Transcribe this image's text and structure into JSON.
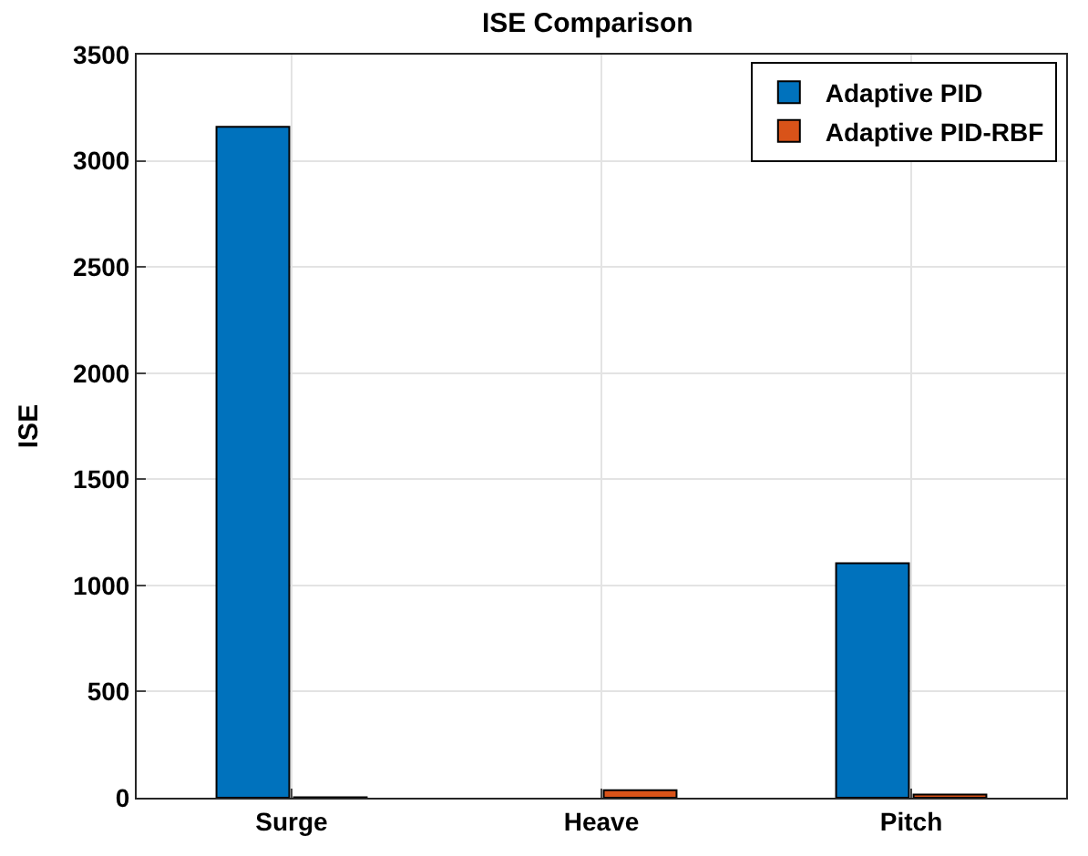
{
  "chart_data": {
    "type": "bar",
    "title": "ISE Comparison",
    "ylabel": "ISE",
    "categories": [
      "Surge",
      "Heave",
      "Pitch"
    ],
    "series": [
      {
        "name": "Adaptive PID",
        "color": "#0072bd",
        "values": [
          3160,
          null,
          1105
        ]
      },
      {
        "name": "Adaptive PID-RBF",
        "color": "#d95319",
        "values": [
          2,
          35,
          15
        ]
      }
    ],
    "ylim": [
      0,
      3500
    ],
    "yticks": [
      0,
      500,
      1000,
      1500,
      2000,
      2500,
      3000,
      3500
    ],
    "grid": true,
    "legend": "top right"
  }
}
